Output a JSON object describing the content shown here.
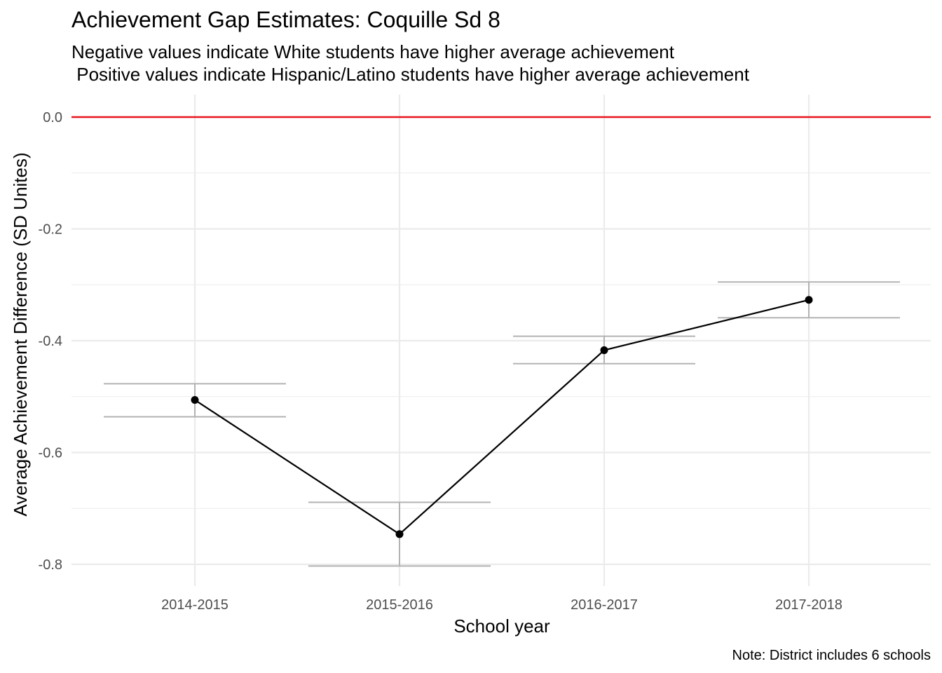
{
  "chart_data": {
    "type": "line",
    "title": "Achievement Gap Estimates: Coquille Sd 8",
    "subtitle": "Negative values indicate White students have higher average achievement\n Positive values indicate Hispanic/Latino students have higher average achievement",
    "xlabel": "School year",
    "ylabel": "Average Achievement Difference (SD Unites)",
    "caption": "Note: District includes 6 schools",
    "categories": [
      "2014-2015",
      "2015-2016",
      "2016-2017",
      "2017-2018"
    ],
    "values": [
      -0.506,
      -0.746,
      -0.417,
      -0.327
    ],
    "error_upper": [
      -0.477,
      -0.689,
      -0.392,
      -0.295
    ],
    "error_lower": [
      -0.536,
      -0.803,
      -0.441,
      -0.359
    ],
    "reference_line": 0.0,
    "ylim": [
      -0.84,
      0.04
    ],
    "yticks": [
      0.0,
      -0.2,
      -0.4,
      -0.6,
      -0.8
    ],
    "ytick_labels": [
      "0.0",
      "-0.2",
      "-0.4",
      "-0.6",
      "-0.8"
    ],
    "grid": true,
    "legend": "none",
    "colors": {
      "line": "#000000",
      "point": "#000000",
      "errorbar": "#b3b3b3",
      "reference": "#e8141c",
      "grid": "#ebebeb"
    }
  }
}
